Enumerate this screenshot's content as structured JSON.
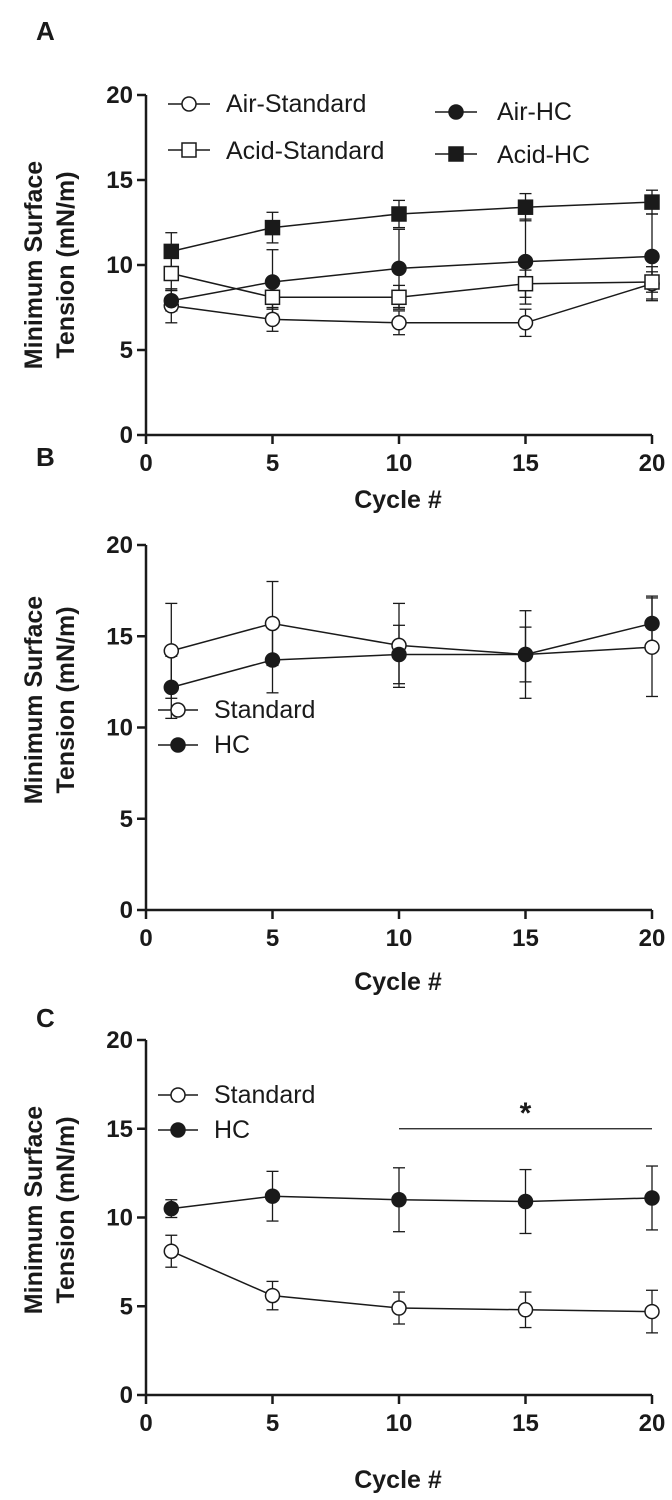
{
  "figure": {
    "background": "#ffffff",
    "ink": "#1a1a1a"
  },
  "chart_data": [
    {
      "panel": "A",
      "type": "line",
      "xlabel": "Cycle #",
      "ylabel_lines": [
        "Minimum  Surface",
        "Tension (mN/m)"
      ],
      "xlim": [
        0,
        20
      ],
      "ylim": [
        0,
        20
      ],
      "xticks": [
        0,
        5,
        10,
        15,
        20
      ],
      "yticks": [
        0,
        5,
        10,
        15,
        20
      ],
      "grid": false,
      "legend_placement": "top",
      "x": [
        1,
        5,
        10,
        15,
        20
      ],
      "series": [
        {
          "name": "Air-Standard",
          "marker": "circle-open",
          "values": [
            7.6,
            6.8,
            6.6,
            6.6,
            8.9
          ],
          "err": [
            1.0,
            0.7,
            0.7,
            0.8,
            1.0
          ]
        },
        {
          "name": "Acid-Standard",
          "marker": "square-open",
          "values": [
            9.5,
            8.1,
            8.1,
            8.9,
            9.0
          ],
          "err": [
            1.0,
            0.7,
            0.7,
            0.8,
            0.6
          ]
        },
        {
          "name": "Air-HC",
          "marker": "circle-filled",
          "values": [
            7.9,
            9.0,
            9.8,
            10.2,
            10.5
          ],
          "err": [
            0.6,
            1.9,
            2.3,
            2.5,
            2.5
          ]
        },
        {
          "name": "Acid-HC",
          "marker": "square-filled",
          "values": [
            10.8,
            12.2,
            13.0,
            13.4,
            13.7
          ],
          "err": [
            1.1,
            0.9,
            0.8,
            0.8,
            0.7
          ]
        }
      ]
    },
    {
      "panel": "B",
      "type": "line",
      "xlabel": "Cycle #",
      "ylabel_lines": [
        "Minimum  Surface",
        "Tension (mN/m)"
      ],
      "xlim": [
        0,
        20
      ],
      "ylim": [
        0,
        20
      ],
      "xticks": [
        0,
        5,
        10,
        15,
        20
      ],
      "yticks": [
        0,
        5,
        10,
        15,
        20
      ],
      "grid": false,
      "legend_placement": "bottom-left",
      "x": [
        1,
        5,
        10,
        15,
        20
      ],
      "series": [
        {
          "name": "Standard",
          "marker": "circle-open",
          "values": [
            14.2,
            15.7,
            14.5,
            14.0,
            14.4
          ],
          "err": [
            2.6,
            2.3,
            2.3,
            2.4,
            2.7
          ]
        },
        {
          "name": "HC",
          "marker": "circle-filled",
          "values": [
            12.2,
            13.7,
            14.0,
            14.0,
            15.7
          ],
          "err": [
            1.7,
            1.8,
            1.6,
            1.5,
            1.5
          ]
        }
      ]
    },
    {
      "panel": "C",
      "type": "line",
      "xlabel": "Cycle #",
      "ylabel_lines": [
        "Minimum  Surface",
        "Tension (mN/m)"
      ],
      "xlim": [
        0,
        20
      ],
      "ylim": [
        0,
        20
      ],
      "xticks": [
        0,
        5,
        10,
        15,
        20
      ],
      "yticks": [
        0,
        5,
        10,
        15,
        20
      ],
      "grid": false,
      "legend_placement": "top-left",
      "x": [
        1,
        5,
        10,
        15,
        20
      ],
      "series": [
        {
          "name": "Standard",
          "marker": "circle-open",
          "values": [
            8.1,
            5.6,
            4.9,
            4.8,
            4.7
          ],
          "err": [
            0.9,
            0.8,
            0.9,
            1.0,
            1.2
          ]
        },
        {
          "name": "HC",
          "marker": "circle-filled",
          "values": [
            10.5,
            11.2,
            11.0,
            10.9,
            11.1
          ],
          "err": [
            0.5,
            1.4,
            1.8,
            1.8,
            1.8
          ]
        }
      ],
      "annotation": {
        "text": "*",
        "x_range": [
          10,
          20
        ],
        "y": 15
      }
    }
  ]
}
